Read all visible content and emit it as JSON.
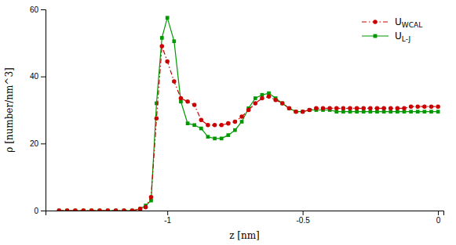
{
  "chart_data": {
    "type": "line",
    "xlabel": "z [nm]",
    "ylabel": "ρ [number/nm^3]",
    "xlim": [
      -1.45,
      0.02
    ],
    "ylim": [
      0,
      60
    ],
    "xticks": [
      -1.0,
      -0.5,
      0.0
    ],
    "yticks": [
      0,
      20,
      40,
      60
    ],
    "grid": false,
    "legend": "upper right",
    "x": [
      -1.4,
      -1.37,
      -1.34,
      -1.31,
      -1.28,
      -1.25,
      -1.22,
      -1.19,
      -1.16,
      -1.13,
      -1.1,
      -1.08,
      -1.06,
      -1.04,
      -1.02,
      -1.0,
      -0.975,
      -0.95,
      -0.925,
      -0.9,
      -0.875,
      -0.85,
      -0.825,
      -0.8,
      -0.775,
      -0.75,
      -0.725,
      -0.7,
      -0.675,
      -0.65,
      -0.625,
      -0.6,
      -0.575,
      -0.55,
      -0.525,
      -0.5,
      -0.475,
      -0.45,
      -0.425,
      -0.4,
      -0.375,
      -0.35,
      -0.325,
      -0.3,
      -0.275,
      -0.25,
      -0.225,
      -0.2,
      -0.175,
      -0.15,
      -0.125,
      -0.1,
      -0.075,
      -0.05,
      -0.025,
      0.0
    ],
    "series": [
      {
        "name": "UWCAL",
        "color": "#cc0000",
        "marker": "circle",
        "line_style": "dashdot",
        "values": [
          0.0,
          0.0,
          0.0,
          0.0,
          0.0,
          0.0,
          0.0,
          0.0,
          0.0,
          0.0,
          0.5,
          1.0,
          4.0,
          27.5,
          49.0,
          44.5,
          38.5,
          33.5,
          32.5,
          31.5,
          27.0,
          25.5,
          25.5,
          25.5,
          26.0,
          26.5,
          28.0,
          30.0,
          32.0,
          33.5,
          34.0,
          33.0,
          32.0,
          30.5,
          29.5,
          29.5,
          30.0,
          30.5,
          30.5,
          30.5,
          30.5,
          30.5,
          30.5,
          30.5,
          30.5,
          30.5,
          30.5,
          30.5,
          30.5,
          30.5,
          30.5,
          31.0,
          31.0,
          31.0,
          31.0,
          31.0
        ]
      },
      {
        "name": "UL-J",
        "color": "#009900",
        "marker": "square",
        "line_style": "solid",
        "values": [
          0.0,
          0.0,
          0.0,
          0.0,
          0.0,
          0.0,
          0.0,
          0.0,
          0.0,
          0.0,
          0.5,
          1.5,
          3.0,
          32.0,
          51.5,
          57.5,
          50.5,
          32.5,
          26.0,
          25.5,
          24.5,
          22.0,
          21.5,
          21.5,
          22.5,
          24.0,
          26.5,
          30.5,
          33.5,
          34.5,
          35.0,
          33.5,
          32.0,
          30.5,
          29.5,
          29.5,
          30.0,
          30.0,
          30.0,
          30.0,
          29.5,
          29.5,
          29.5,
          29.5,
          29.5,
          29.5,
          29.5,
          29.5,
          29.5,
          29.5,
          29.5,
          29.5,
          29.5,
          29.5,
          29.5,
          29.5
        ]
      }
    ]
  }
}
